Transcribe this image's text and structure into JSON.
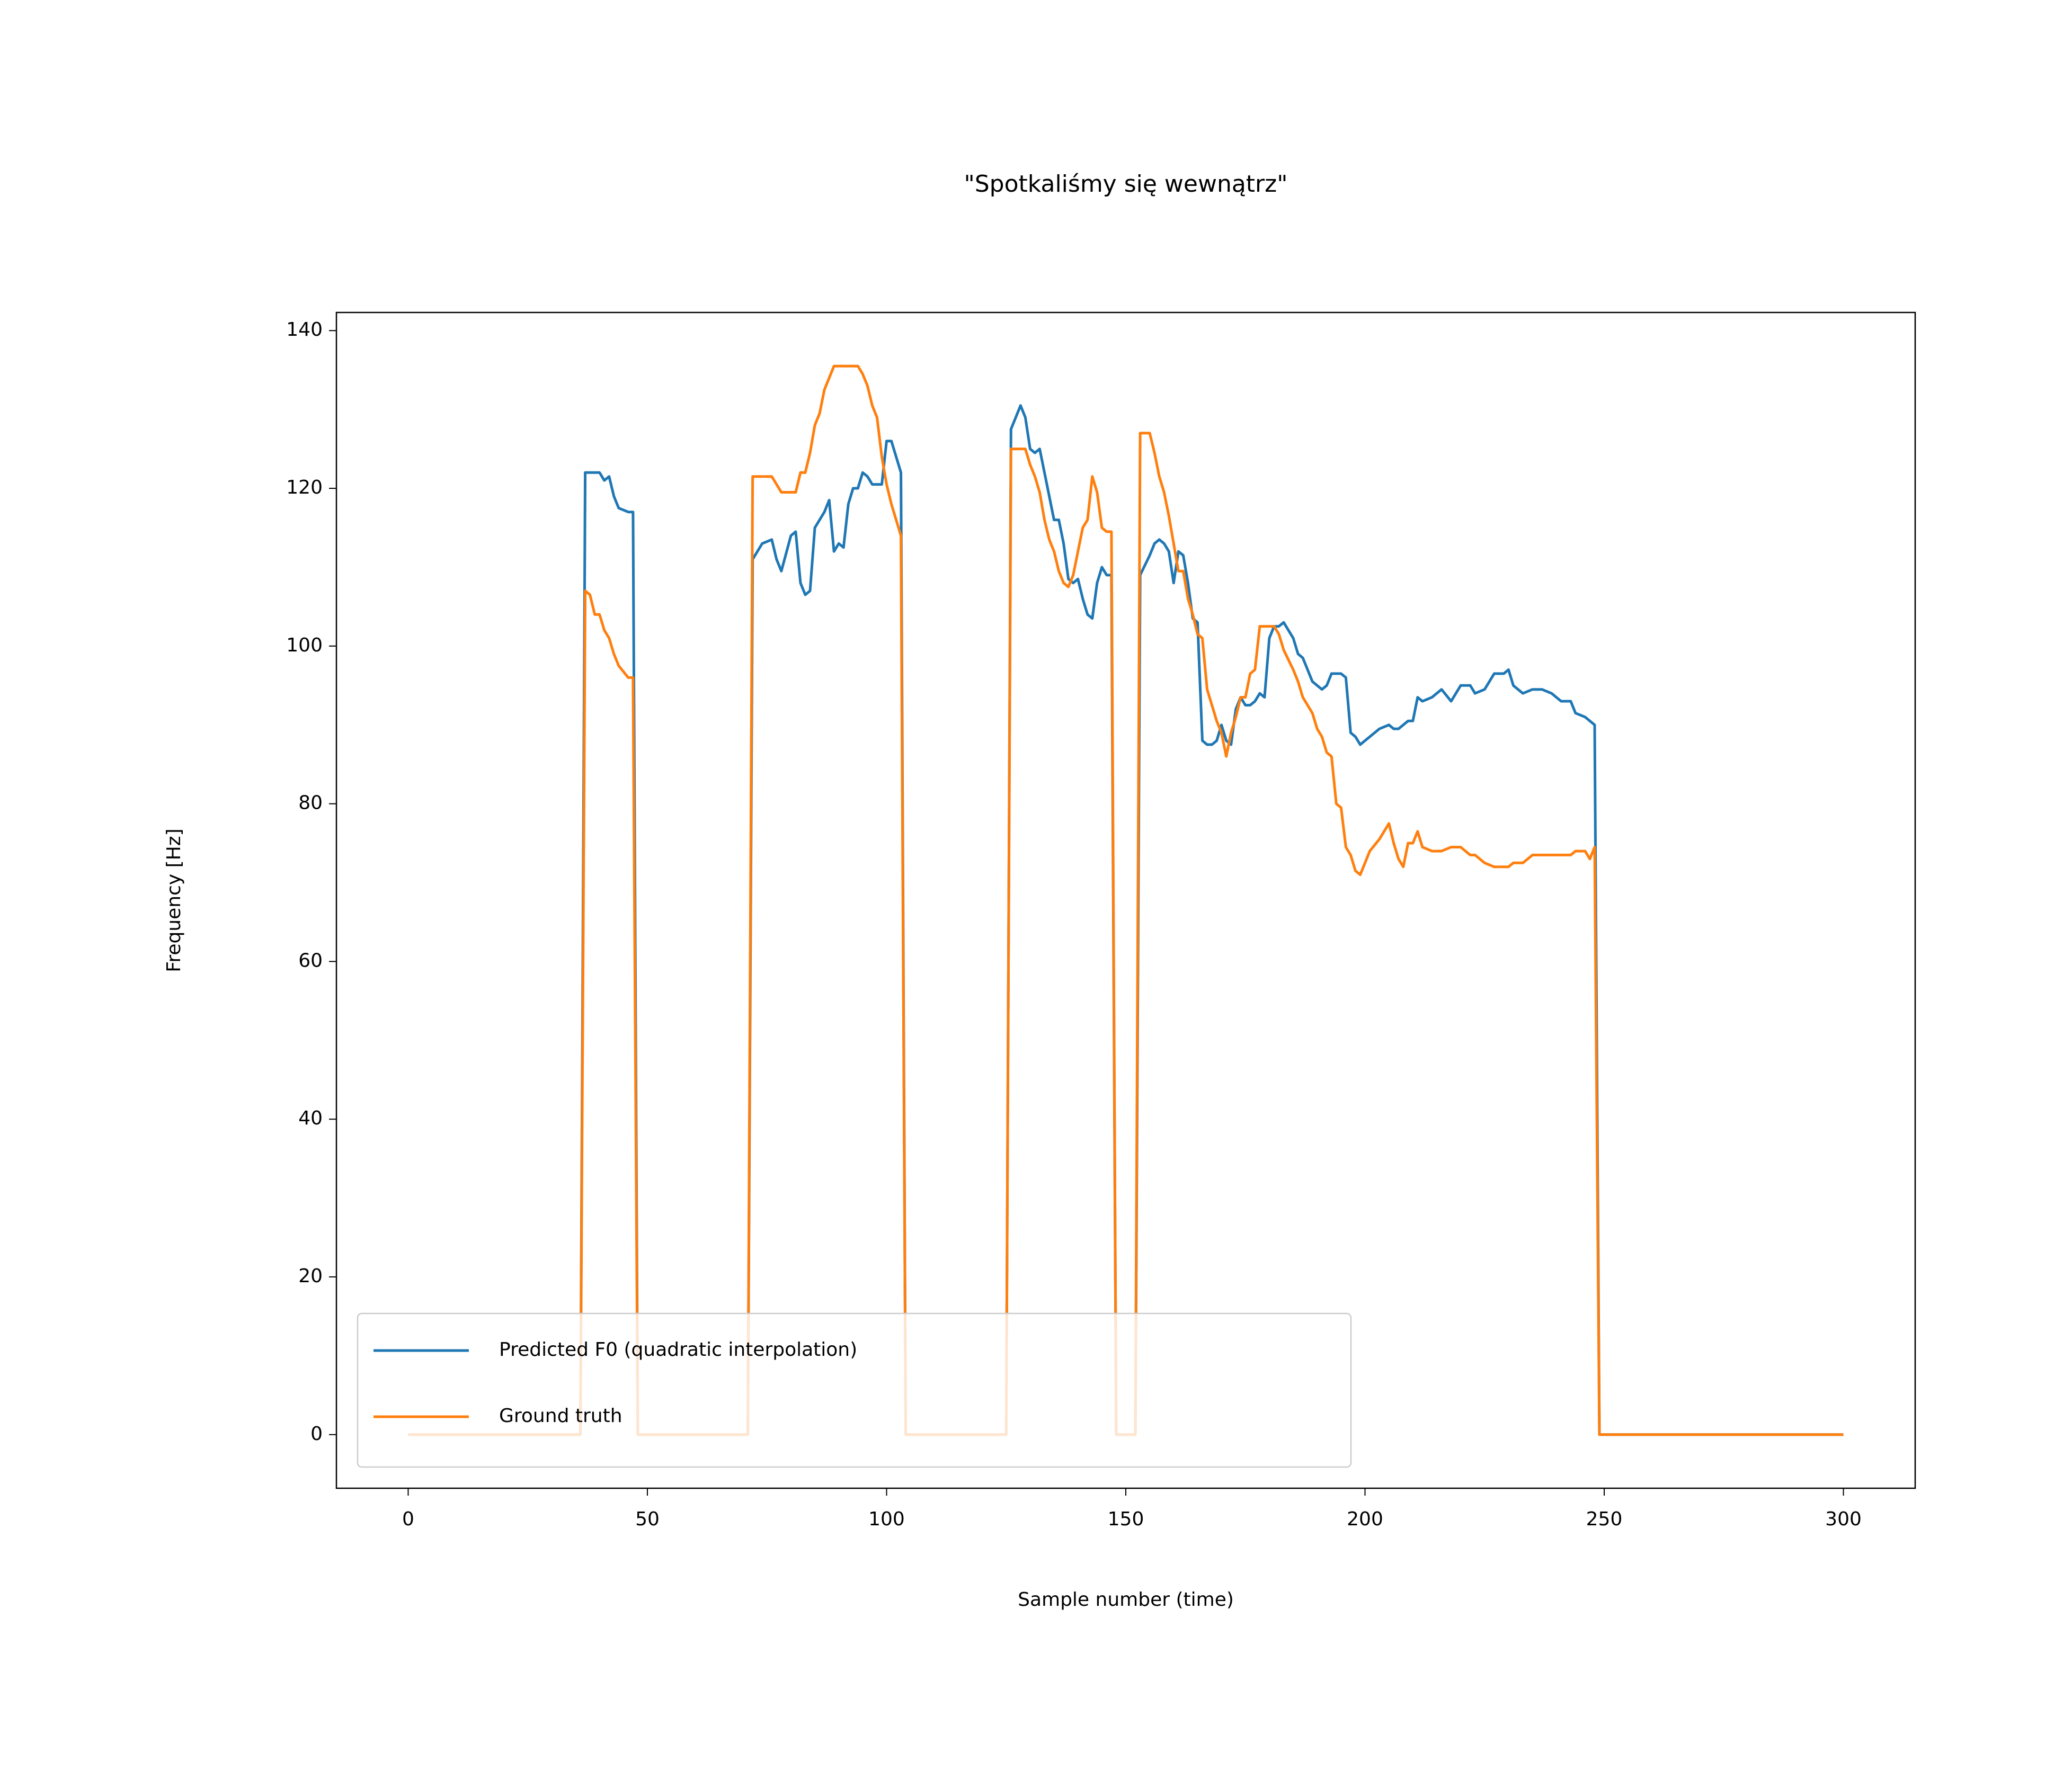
{
  "chart_data": {
    "type": "line",
    "title": "\"Spotkaliśmy się wewnątrz\"",
    "x_label": "Sample number (time)",
    "y_label": "Frequency [Hz]",
    "x": [
      0,
      36,
      37,
      38,
      39,
      40,
      41,
      42,
      43,
      44,
      46,
      47,
      48,
      71,
      72,
      74,
      76,
      77,
      78,
      80,
      81,
      82,
      83,
      84,
      85,
      86,
      87,
      88,
      89,
      90,
      91,
      92,
      93,
      94,
      95,
      96,
      97,
      98,
      99,
      100,
      101,
      102,
      103,
      104,
      125,
      126,
      127,
      128,
      129,
      130,
      131,
      132,
      133,
      134,
      135,
      136,
      137,
      138,
      139,
      140,
      141,
      142,
      143,
      144,
      145,
      146,
      147,
      148,
      152,
      153,
      155,
      156,
      157,
      158,
      159,
      160,
      161,
      162,
      163,
      164,
      165,
      166,
      167,
      168,
      169,
      170,
      171,
      172,
      173,
      174,
      175,
      176,
      177,
      178,
      179,
      180,
      181,
      182,
      183,
      185,
      186,
      187,
      188,
      189,
      190,
      191,
      192,
      193,
      194,
      195,
      196,
      197,
      198,
      199,
      200,
      201,
      203,
      205,
      206,
      207,
      208,
      209,
      210,
      211,
      212,
      214,
      216,
      218,
      220,
      222,
      223,
      225,
      227,
      229,
      230,
      231,
      233,
      235,
      237,
      239,
      241,
      243,
      244,
      246,
      247,
      248,
      249,
      300
    ],
    "series": [
      {
        "name": "Predicted F0 (quadratic interpolation)",
        "color": "#1f77b4",
        "values": [
          0,
          0,
          122,
          122,
          122,
          122,
          121,
          121.5,
          119,
          117.5,
          117,
          117,
          0,
          0,
          111,
          113,
          113.5,
          111,
          109.5,
          114,
          114.5,
          108,
          106.5,
          107,
          115,
          116,
          117,
          118.5,
          112,
          113,
          112.5,
          118,
          120,
          120,
          122,
          121.5,
          120.5,
          120.5,
          120.5,
          126,
          126,
          124,
          122,
          0,
          0,
          127.5,
          129,
          130.5,
          129,
          125,
          124.5,
          125,
          122,
          119,
          116,
          116,
          113,
          108.5,
          108,
          108.5,
          106,
          104,
          103.5,
          108,
          110,
          109,
          109,
          0,
          0,
          109,
          111.5,
          113,
          113.5,
          113,
          112,
          108,
          112,
          111.5,
          108,
          103.5,
          103,
          88,
          87.5,
          87.5,
          88,
          90,
          88,
          87.5,
          92,
          93.5,
          92.5,
          92.5,
          93,
          94,
          93.5,
          101,
          102.5,
          102.5,
          103,
          101,
          99,
          98.5,
          97,
          95.5,
          95,
          94.5,
          95,
          96.5,
          96.5,
          96.5,
          96,
          89,
          88.5,
          87.5,
          88,
          88.5,
          89.5,
          90,
          89.5,
          89.5,
          90,
          90.5,
          90.5,
          93.5,
          93,
          93.5,
          94.5,
          93,
          95,
          95,
          94,
          94.5,
          96.5,
          96.5,
          97,
          95,
          94,
          94.5,
          94.5,
          94,
          93,
          93,
          91.5,
          91,
          90.5,
          90,
          0,
          0
        ]
      },
      {
        "name": "Ground truth",
        "color": "#ff7f0e",
        "values": [
          0,
          0,
          107,
          106.5,
          104,
          104,
          102,
          101,
          99,
          97.5,
          96,
          96,
          0,
          0,
          121.5,
          121.5,
          121.5,
          120.5,
          119.5,
          119.5,
          119.5,
          122,
          122,
          124.5,
          128,
          129.5,
          132.5,
          134,
          135.5,
          135.5,
          135.5,
          135.5,
          135.5,
          135.5,
          134.5,
          133,
          130.5,
          129,
          124,
          120.5,
          118,
          116,
          114,
          0,
          0,
          125,
          125,
          125,
          125,
          123,
          121.5,
          119.5,
          116,
          113.5,
          112,
          109.5,
          108,
          107.5,
          109,
          112,
          115,
          116,
          121.5,
          119.5,
          115,
          114.5,
          114.5,
          0,
          0,
          127,
          127,
          124.5,
          121.5,
          119.5,
          116.5,
          113,
          109.5,
          109.5,
          106,
          104,
          101.5,
          101,
          94.5,
          92.5,
          90.5,
          89,
          86,
          89,
          91,
          93.5,
          93.5,
          96.5,
          97,
          102.5,
          102.5,
          102.5,
          102.5,
          101.5,
          99.5,
          97,
          95.5,
          93.5,
          92.5,
          91.5,
          89.5,
          88.5,
          86.5,
          86,
          80,
          79.5,
          74.5,
          73.5,
          71.5,
          71,
          72.5,
          74,
          75.5,
          77.5,
          75,
          73,
          72,
          75,
          75,
          76.5,
          74.5,
          74,
          74,
          74.5,
          74.5,
          73.5,
          73.5,
          72.5,
          72,
          72,
          72,
          72.5,
          72.5,
          73.5,
          73.5,
          73.5,
          73.5,
          73.5,
          74,
          74,
          73,
          74.5,
          0,
          0
        ]
      }
    ],
    "xlim": [
      -15,
      315
    ],
    "ylim": [
      -6.8,
      142.3
    ],
    "xticks": [
      0,
      50,
      100,
      150,
      200,
      250,
      300
    ],
    "yticks": [
      0,
      20,
      40,
      60,
      80,
      100,
      120,
      140
    ],
    "legend": "lower left"
  }
}
